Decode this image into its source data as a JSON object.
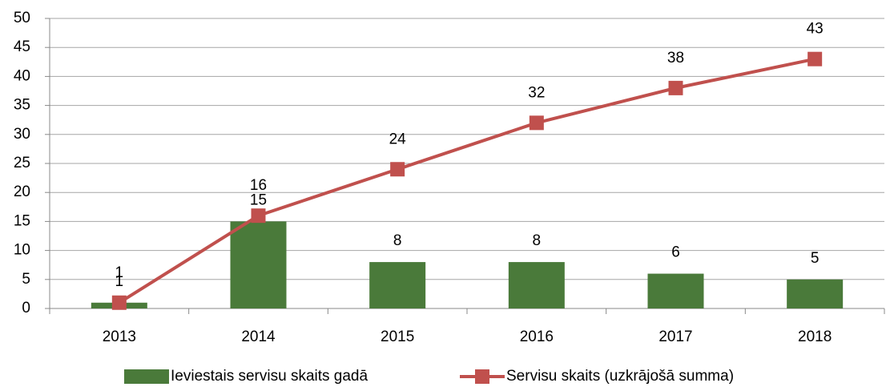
{
  "chart_data": {
    "type": "combo",
    "categories": [
      "2013",
      "2014",
      "2015",
      "2016",
      "2017",
      "2018"
    ],
    "series": [
      {
        "name": "Ieviestais servisu skaits gadā",
        "type": "bar",
        "color": "#4a7a3a",
        "values": [
          1,
          15,
          8,
          8,
          6,
          5
        ]
      },
      {
        "name": "Servisu skaits (uzkrājošā summa)",
        "type": "line",
        "color": "#c0504d",
        "values": [
          1,
          16,
          24,
          32,
          38,
          43
        ]
      }
    ],
    "ylim": [
      0,
      50
    ],
    "yticks": [
      0,
      5,
      10,
      15,
      20,
      25,
      30,
      35,
      40,
      45,
      50
    ],
    "grid": true,
    "legend": "bottom"
  }
}
